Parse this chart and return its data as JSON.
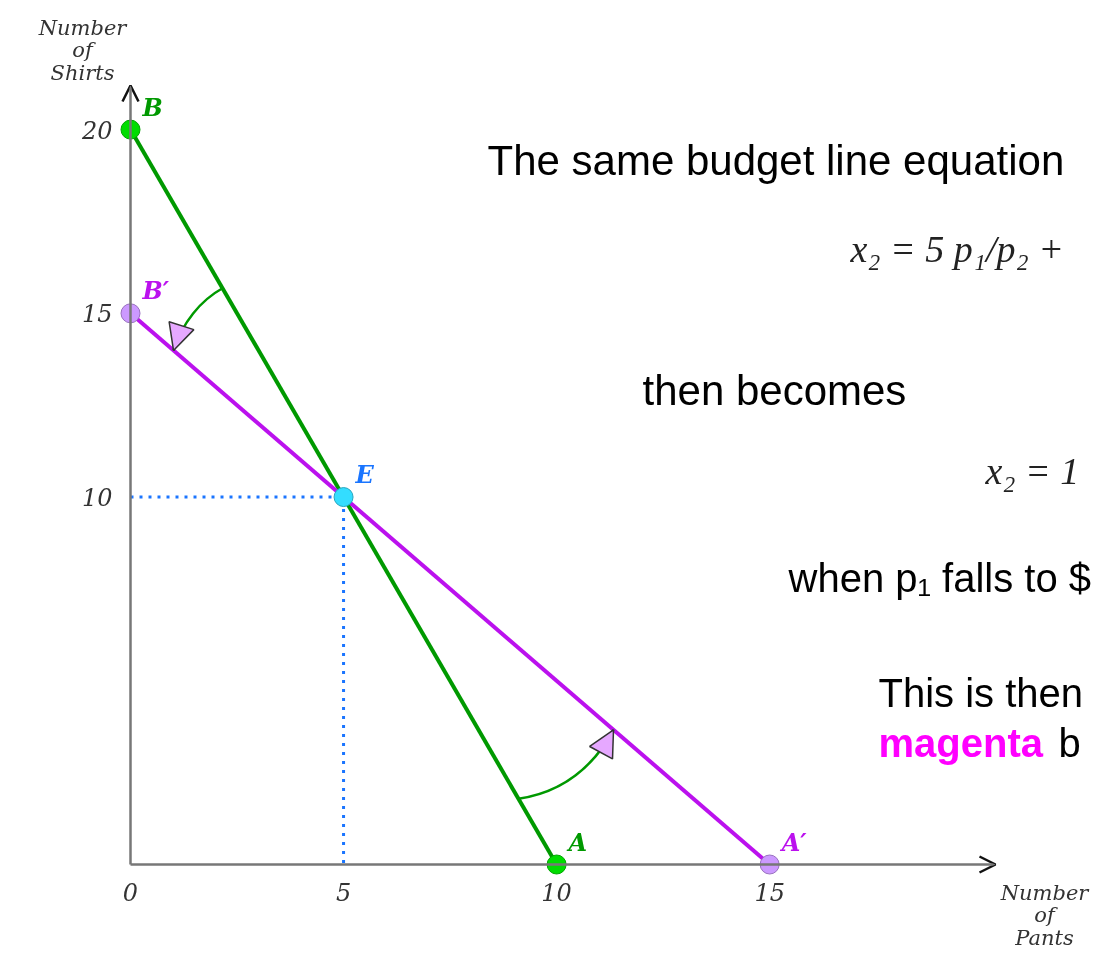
{
  "chart_data": {
    "type": "line",
    "xlabel": "Number of Pants",
    "ylabel": "Number of Shirts",
    "xlim": [
      0,
      20.3
    ],
    "ylim": [
      0,
      21.2
    ],
    "xticks": [
      0,
      5,
      10,
      15
    ],
    "yticks": [
      10,
      15,
      20
    ],
    "marker": "circle",
    "series": [
      {
        "color": "#009900",
        "marker": "none",
        "x": [
          0,
          10
        ],
        "values": [
          20,
          0
        ]
      },
      {
        "color": "#bb11ee",
        "marker": "none",
        "x": [
          0,
          15
        ],
        "values": [
          15,
          0
        ]
      },
      {
        "color": "#1a75ff",
        "marker": "none",
        "line_style": "dotted",
        "x": [
          0,
          5,
          5
        ],
        "values": [
          10,
          10,
          0
        ]
      },
      {
        "type": "scatter",
        "color": "#00dd00",
        "x": [
          0,
          10
        ],
        "values": [
          20,
          0
        ]
      },
      {
        "type": "scatter",
        "color": "#cc99ff",
        "x": [
          0,
          15
        ],
        "values": [
          15,
          0
        ]
      },
      {
        "type": "scatter",
        "color": "#33ddff",
        "x": [
          5
        ],
        "values": [
          10
        ]
      }
    ],
    "annotations": [
      {
        "text": "B",
        "x": 0,
        "y": 20
      },
      {
        "text": "B′",
        "x": 0,
        "y": 15
      },
      {
        "text": "E",
        "x": 5,
        "y": 10
      },
      {
        "text": "A",
        "x": 10,
        "y": 0
      },
      {
        "text": "A′",
        "x": 15,
        "y": 0
      },
      "The same budget line equation",
      "x₂ = 5 p₁/p₂ +",
      "then becomes",
      "x₂ = 1",
      "when p₁ falls to $",
      "This is then",
      "magenta",
      "b"
    ]
  }
}
